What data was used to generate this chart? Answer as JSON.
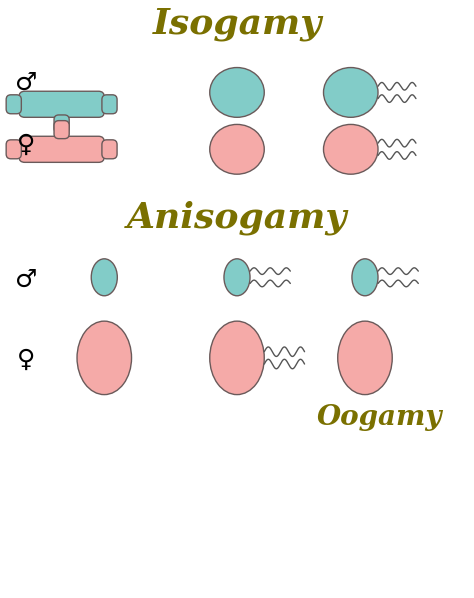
{
  "bg_color": "#ffffff",
  "title_isogamy": "Isogamy",
  "title_anisogamy": "Anisogamy",
  "title_oogamy": "Oogamy",
  "title_color": "#7a7000",
  "title_fontsize": 26,
  "oogamy_fontsize": 20,
  "symbol_fontsize": 18,
  "male_color": "#82ccc8",
  "female_color": "#f5aaa8",
  "edge_color": "#6a5a5a",
  "tail_color": "#555555",
  "fig_width": 4.74,
  "fig_height": 5.98
}
